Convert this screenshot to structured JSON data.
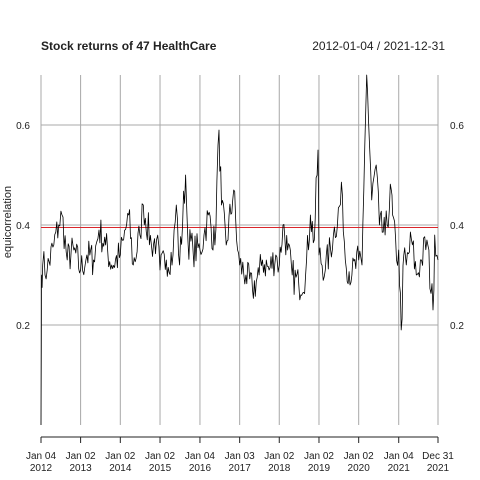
{
  "chart_data": {
    "type": "line",
    "title": "Stock returns of 47 HealthCare",
    "date_range": "2012-01-04 / 2021-12-31",
    "ylabel": "equicorrelation",
    "xlabel": "",
    "ylim": [
      0,
      0.7
    ],
    "xlim": [
      "2012-01-04",
      "2021-12-31"
    ],
    "grid": true,
    "yticks": [
      0.2,
      0.4,
      0.6
    ],
    "ytick_labels": [
      "0.2",
      "0.4",
      "0.6"
    ],
    "xtick_labels": [
      {
        "date": "2012-01-04",
        "line1": "Jan 04",
        "line2": "2012"
      },
      {
        "date": "2013-01-02",
        "line1": "Jan 02",
        "line2": "2013"
      },
      {
        "date": "2014-01-02",
        "line1": "Jan 02",
        "line2": "2014"
      },
      {
        "date": "2015-01-02",
        "line1": "Jan 02",
        "line2": "2015"
      },
      {
        "date": "2016-01-04",
        "line1": "Jan 04",
        "line2": "2016"
      },
      {
        "date": "2017-01-03",
        "line1": "Jan 03",
        "line2": "2017"
      },
      {
        "date": "2018-01-02",
        "line1": "Jan 02",
        "line2": "2018"
      },
      {
        "date": "2019-01-02",
        "line1": "Jan 02",
        "line2": "2019"
      },
      {
        "date": "2020-01-02",
        "line1": "Jan 02",
        "line2": "2020"
      },
      {
        "date": "2021-01-04",
        "line1": "Jan 04",
        "line2": "2021"
      },
      {
        "date": "2021-12-31",
        "line1": "Dec 31",
        "line2": "2021"
      }
    ],
    "hline": {
      "y": 0.395,
      "color": "#d9262b"
    },
    "series": [
      {
        "color": "#000000",
        "points": [
          [
            "2012-01-04",
            0.0
          ],
          [
            "2012-01-09",
            0.3
          ],
          [
            "2012-01-20",
            0.32
          ],
          [
            "2012-03-01",
            0.31
          ],
          [
            "2012-05-01",
            0.36
          ],
          [
            "2012-06-15",
            0.4
          ],
          [
            "2012-07-15",
            0.42
          ],
          [
            "2012-09-01",
            0.33
          ],
          [
            "2012-11-01",
            0.35
          ],
          [
            "2013-01-02",
            0.31
          ],
          [
            "2013-03-01",
            0.34
          ],
          [
            "2013-05-01",
            0.33
          ],
          [
            "2013-06-20",
            0.39
          ],
          [
            "2013-08-20",
            0.36
          ],
          [
            "2013-10-15",
            0.32
          ],
          [
            "2014-01-02",
            0.34
          ],
          [
            "2014-02-01",
            0.37
          ],
          [
            "2014-03-20",
            0.42
          ],
          [
            "2014-05-01",
            0.32
          ],
          [
            "2014-07-01",
            0.38
          ],
          [
            "2014-08-01",
            0.44
          ],
          [
            "2014-10-15",
            0.36
          ],
          [
            "2014-12-01",
            0.37
          ],
          [
            "2015-01-02",
            0.31
          ],
          [
            "2015-03-01",
            0.33
          ],
          [
            "2015-05-01",
            0.34
          ],
          [
            "2015-06-01",
            0.44
          ],
          [
            "2015-07-01",
            0.32
          ],
          [
            "2015-08-25",
            0.5
          ],
          [
            "2015-09-15",
            0.37
          ],
          [
            "2015-11-01",
            0.35
          ],
          [
            "2016-01-04",
            0.35
          ],
          [
            "2016-02-10",
            0.38
          ],
          [
            "2016-03-20",
            0.42
          ],
          [
            "2016-05-20",
            0.36
          ],
          [
            "2016-06-27",
            0.59
          ],
          [
            "2016-07-20",
            0.44
          ],
          [
            "2016-09-01",
            0.36
          ],
          [
            "2016-11-09",
            0.47
          ],
          [
            "2016-12-15",
            0.35
          ],
          [
            "2017-01-03",
            0.32
          ],
          [
            "2017-03-01",
            0.3
          ],
          [
            "2017-05-01",
            0.27
          ],
          [
            "2017-07-01",
            0.3
          ],
          [
            "2017-08-01",
            0.33
          ],
          [
            "2017-10-01",
            0.31
          ],
          [
            "2017-12-01",
            0.34
          ],
          [
            "2018-01-02",
            0.32
          ],
          [
            "2018-02-05",
            0.4
          ],
          [
            "2018-03-20",
            0.35
          ],
          [
            "2018-05-01",
            0.3
          ],
          [
            "2018-07-01",
            0.28
          ],
          [
            "2018-09-01",
            0.3
          ],
          [
            "2018-10-15",
            0.42
          ],
          [
            "2018-11-20",
            0.37
          ],
          [
            "2018-12-24",
            0.55
          ],
          [
            "2019-01-02",
            0.34
          ],
          [
            "2019-03-01",
            0.31
          ],
          [
            "2019-05-15",
            0.38
          ],
          [
            "2019-08-05",
            0.46
          ],
          [
            "2019-09-01",
            0.33
          ],
          [
            "2019-11-01",
            0.3
          ],
          [
            "2020-01-02",
            0.33
          ],
          [
            "2020-02-01",
            0.32
          ],
          [
            "2020-02-27",
            0.56
          ],
          [
            "2020-03-16",
            0.72
          ],
          [
            "2020-04-01",
            0.61
          ],
          [
            "2020-05-01",
            0.45
          ],
          [
            "2020-06-11",
            0.52
          ],
          [
            "2020-07-10",
            0.4
          ],
          [
            "2020-09-01",
            0.38
          ],
          [
            "2020-10-28",
            0.47
          ],
          [
            "2020-11-09",
            0.42
          ],
          [
            "2020-12-15",
            0.33
          ],
          [
            "2021-01-04",
            0.35
          ],
          [
            "2021-01-27",
            0.19
          ],
          [
            "2021-02-20",
            0.34
          ],
          [
            "2021-03-15",
            0.32
          ],
          [
            "2021-05-01",
            0.37
          ],
          [
            "2021-06-15",
            0.3
          ],
          [
            "2021-08-01",
            0.33
          ],
          [
            "2021-09-20",
            0.37
          ],
          [
            "2021-11-15",
            0.23
          ],
          [
            "2021-12-01",
            0.38
          ],
          [
            "2021-12-31",
            0.33
          ]
        ]
      }
    ]
  }
}
